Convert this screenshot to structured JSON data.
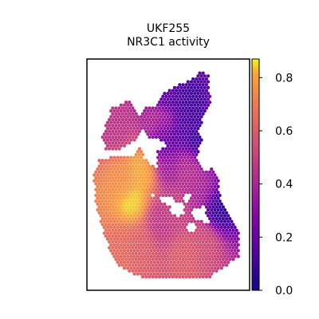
{
  "chart_data": {
    "type": "heatmap",
    "subtype": "spatial-spot-map",
    "title": [
      "UKF255",
      "NR3C1 activity"
    ],
    "xlabel": "",
    "ylabel": "",
    "grid": false,
    "colormap": "plasma",
    "colorbar": {
      "position": "right",
      "range": [
        0.0,
        0.87
      ],
      "ticks": [
        0.0,
        0.2,
        0.4,
        0.6,
        0.8
      ],
      "tick_labels": [
        "0.0",
        "0.2",
        "0.4",
        "0.6",
        "0.8"
      ]
    },
    "hotspots": [
      {
        "x": 0.28,
        "y": 0.62,
        "value": 0.87
      },
      {
        "x": 0.34,
        "y": 0.48,
        "value": 0.85
      },
      {
        "x": 0.22,
        "y": 0.52,
        "value": 0.75
      },
      {
        "x": 0.22,
        "y": 0.82,
        "value": 0.65
      },
      {
        "x": 0.32,
        "y": 0.8,
        "value": 0.6
      },
      {
        "x": 0.6,
        "y": 0.85,
        "value": 0.6
      },
      {
        "x": 0.72,
        "y": 0.78,
        "value": 0.55
      },
      {
        "x": 0.55,
        "y": 0.66,
        "value": 0.5
      },
      {
        "x": 0.18,
        "y": 0.3,
        "value": 0.45
      },
      {
        "x": 0.45,
        "y": 0.7,
        "value": 0.45
      },
      {
        "x": 0.62,
        "y": 0.48,
        "value": 0.45
      },
      {
        "x": 0.45,
        "y": 0.28,
        "value": 0.45
      },
      {
        "x": 0.85,
        "y": 0.25,
        "value": 0.45
      },
      {
        "x": 0.7,
        "y": 0.58,
        "value": 0.4
      },
      {
        "x": 0.5,
        "y": 0.45,
        "value": 0.35
      },
      {
        "x": 0.5,
        "y": 0.15,
        "value": 0.15
      },
      {
        "x": 0.62,
        "y": 0.3,
        "value": 0.15
      },
      {
        "x": 0.65,
        "y": 0.2,
        "value": 0.1
      },
      {
        "x": 0.7,
        "y": 0.35,
        "value": 0.05
      },
      {
        "x": 0.48,
        "y": 0.35,
        "value": 0.1
      },
      {
        "x": 0.8,
        "y": 0.65,
        "value": 0.05
      }
    ]
  }
}
